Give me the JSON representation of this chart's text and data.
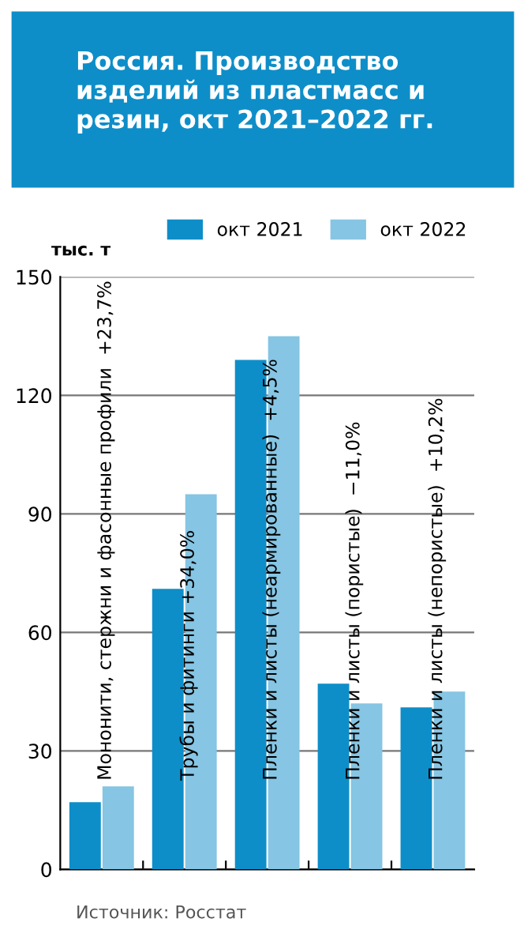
{
  "chart_data": {
    "type": "bar",
    "title": "Россия. Производство изделий из пластмасс и резин, окт 2021–2022 гг.",
    "ylabel": "тыс. т",
    "categories": [
      "Мононити, стержни и фасонные профили  +23,7%",
      "Трубы и фитинги +34,0%",
      "Пленки и листы (неармированные)  +4,5%",
      "Пленки и листы (пористые)  −11,0%",
      "Пленки и листы (непористые)  +10,2%"
    ],
    "series": [
      {
        "name": "окт 2021",
        "color": "#0e8ec8",
        "values": [
          17,
          71,
          129,
          47,
          41
        ]
      },
      {
        "name": "окт 2022",
        "color": "#86c5e3",
        "values": [
          21,
          95,
          135,
          42,
          45
        ]
      }
    ],
    "ylim": [
      0,
      150
    ],
    "yticks": [
      0,
      30,
      60,
      90,
      120,
      150
    ],
    "grid": "y",
    "legend": "top right",
    "annotations": [
      "Источник: Росстат"
    ]
  }
}
